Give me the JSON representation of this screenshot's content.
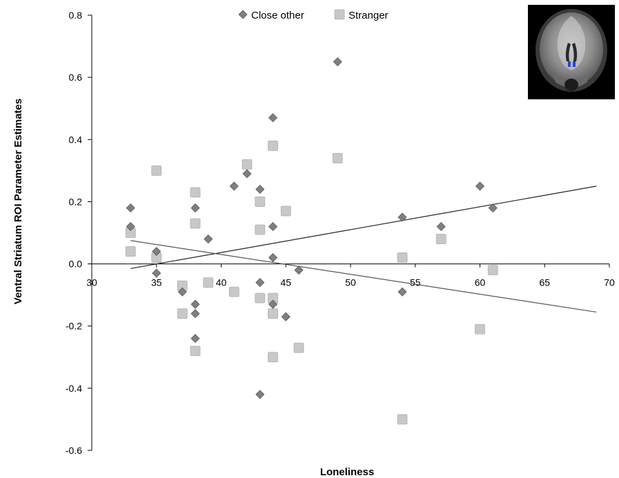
{
  "chart_data": {
    "type": "scatter",
    "xlabel": "Loneliness",
    "ylabel": "Ventral Striatum ROI Parameter Estimates",
    "xlim": [
      30,
      70
    ],
    "ylim": [
      -0.6,
      0.8
    ],
    "x_ticks": [
      "30",
      "35",
      "40",
      "45",
      "50",
      "55",
      "60",
      "65",
      "70"
    ],
    "y_ticks": [
      "0.8",
      "0.6",
      "0.4",
      "0.2",
      "0.0",
      "-0.2",
      "-0.4",
      "-0.6"
    ],
    "legend_position": "top-center",
    "inset": "brain-coronal-slice-with-ventral-striatum-roi",
    "series": [
      {
        "name": "Close other",
        "marker": "diamond",
        "color": "#7f7f7f",
        "points": [
          [
            33,
            0.18
          ],
          [
            33,
            0.12
          ],
          [
            35,
            0.04
          ],
          [
            35,
            -0.03
          ],
          [
            37,
            -0.09
          ],
          [
            38,
            0.18
          ],
          [
            38,
            -0.13
          ],
          [
            38,
            -0.16
          ],
          [
            38,
            -0.24
          ],
          [
            39,
            0.08
          ],
          [
            41,
            0.25
          ],
          [
            42,
            0.29
          ],
          [
            43,
            0.24
          ],
          [
            43,
            -0.06
          ],
          [
            43,
            -0.42
          ],
          [
            44,
            0.47
          ],
          [
            44,
            0.12
          ],
          [
            44,
            0.02
          ],
          [
            44,
            -0.13
          ],
          [
            45,
            -0.17
          ],
          [
            46,
            -0.02
          ],
          [
            49,
            0.65
          ],
          [
            54,
            0.15
          ],
          [
            54,
            -0.09
          ],
          [
            57,
            0.12
          ],
          [
            60,
            0.25
          ],
          [
            61,
            0.18
          ]
        ],
        "trendline": [
          [
            33,
            -0.015
          ],
          [
            69,
            0.25
          ]
        ]
      },
      {
        "name": "Stranger",
        "marker": "square",
        "color": "#c8c8c8",
        "points": [
          [
            33,
            0.1
          ],
          [
            33,
            0.04
          ],
          [
            35,
            0.3
          ],
          [
            35,
            0.02
          ],
          [
            37,
            -0.07
          ],
          [
            37,
            -0.16
          ],
          [
            38,
            0.23
          ],
          [
            38,
            0.13
          ],
          [
            38,
            -0.28
          ],
          [
            39,
            -0.06
          ],
          [
            41,
            -0.09
          ],
          [
            42,
            0.32
          ],
          [
            43,
            0.2
          ],
          [
            43,
            0.11
          ],
          [
            43,
            -0.11
          ],
          [
            44,
            0.38
          ],
          [
            44,
            -0.11
          ],
          [
            44,
            -0.16
          ],
          [
            44,
            -0.3
          ],
          [
            45,
            0.17
          ],
          [
            46,
            -0.27
          ],
          [
            49,
            0.34
          ],
          [
            54,
            0.02
          ],
          [
            54,
            -0.5
          ],
          [
            57,
            0.08
          ],
          [
            60,
            -0.21
          ],
          [
            61,
            -0.02
          ]
        ],
        "trendline": [
          [
            33,
            0.075
          ],
          [
            69,
            -0.155
          ]
        ]
      }
    ]
  }
}
